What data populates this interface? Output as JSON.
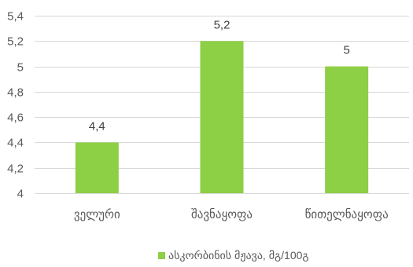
{
  "chart_data": {
    "type": "bar",
    "categories": [
      "ველური",
      "შავნაყოფა",
      "წითელნაყოფა"
    ],
    "series": [
      {
        "name": "ასკორბინის მჟავა, მგ/100გ",
        "values": [
          4.4,
          5.2,
          5.0
        ],
        "data_labels": [
          "4,4",
          "5,2",
          "5"
        ],
        "color": "#8dcf45"
      }
    ],
    "ylim": [
      4,
      5.4
    ],
    "yticks": [
      4,
      4.2,
      4.4,
      4.6,
      4.8,
      5,
      5.2,
      5.4
    ],
    "ytick_labels": [
      "4",
      "4,2",
      "4,4",
      "4,6",
      "4,8",
      "5",
      "5,2",
      "5,4"
    ],
    "grid": "horizontal",
    "legend_position": "bottom",
    "colors": {
      "axis": "#d9d9d9",
      "grid": "#d9d9d9",
      "text": "#595959"
    }
  }
}
